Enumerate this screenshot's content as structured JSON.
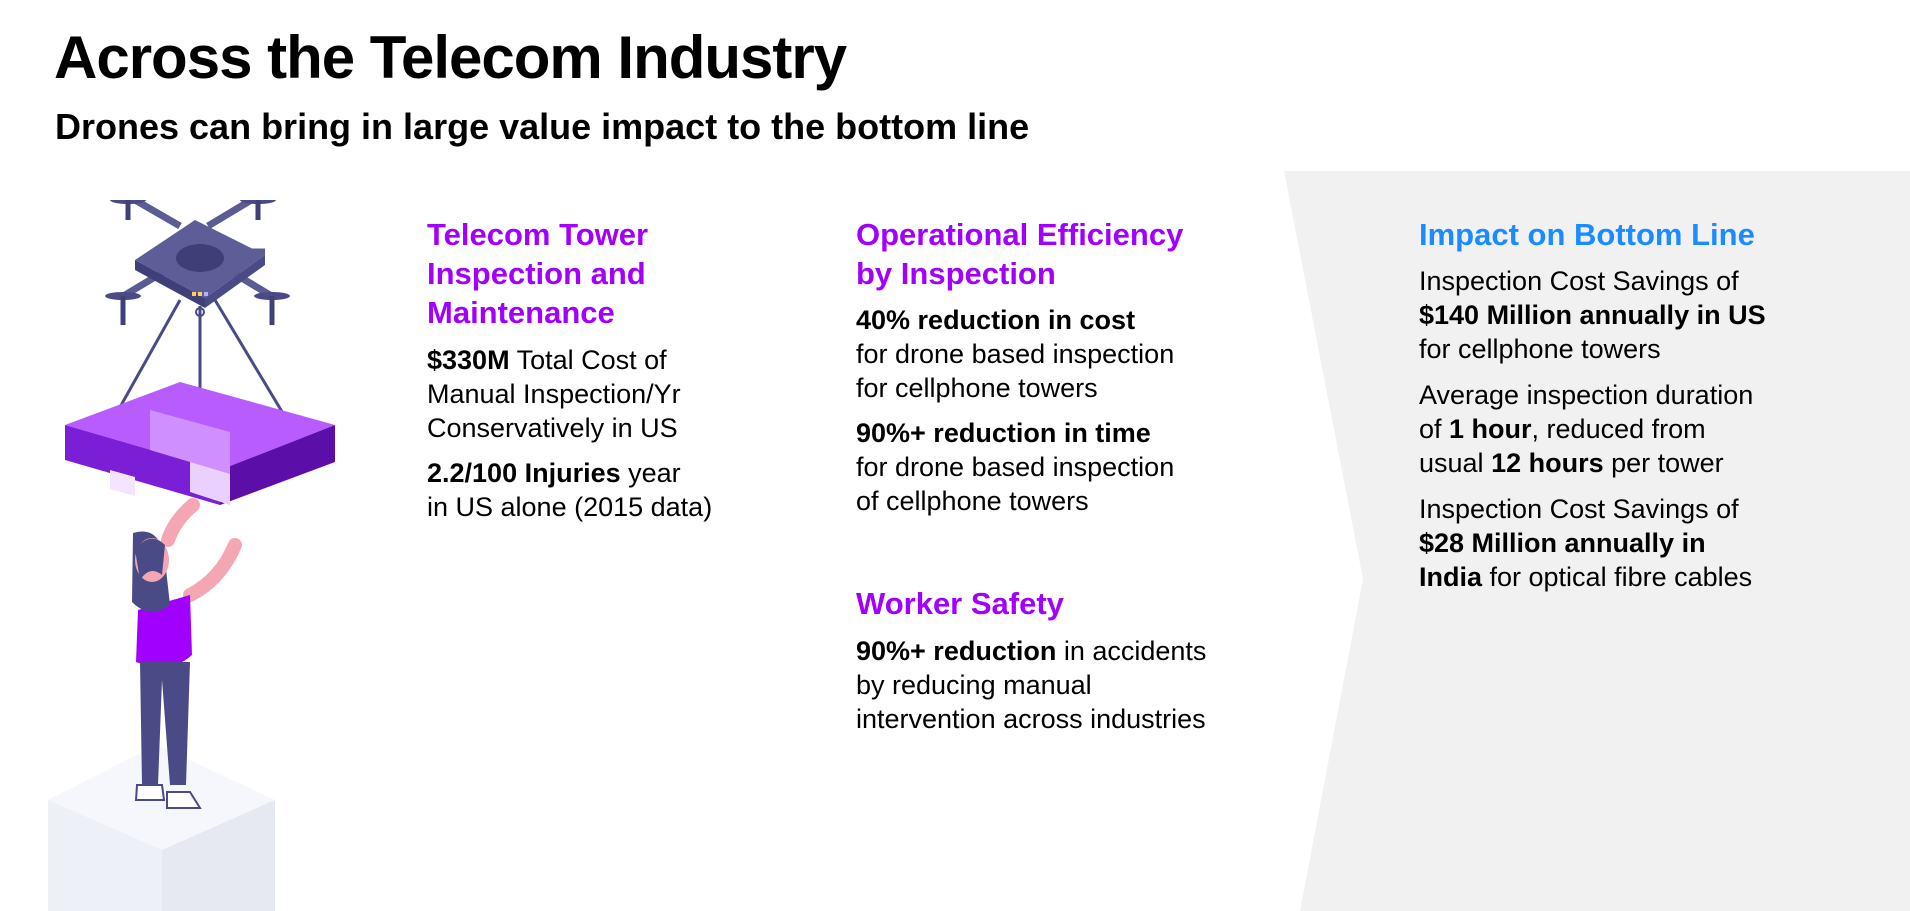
{
  "title": "Across the Telecom Industry",
  "subtitle": "Drones can bring in large value impact to the bottom line",
  "colors": {
    "accent_purple": "#a100ff",
    "accent_blue": "#1a8cff",
    "panel_gray": "#f1f1f1"
  },
  "illustration": {
    "icons": [
      "drone-icon",
      "package-icon",
      "person-icon",
      "pedestal-icon"
    ]
  },
  "col1": {
    "heading_l1": "Telecom Tower",
    "heading_l2": "Inspection and",
    "heading_l3": "Maintenance",
    "p1_bold": "$330M",
    "p1_l1": " Total Cost of",
    "p1_l2": "Manual Inspection/Yr",
    "p1_l3": "Conservatively in US",
    "p2_bold": "2.2/100 Injuries",
    "p2_l1": " year",
    "p2_l2": "in US alone (2015 data)"
  },
  "col2": {
    "heading_l1": "Operational Efficiency",
    "heading_l2": "by Inspection",
    "p1_bold": "40% reduction in cost",
    "p1_l2": "for drone based inspection",
    "p1_l3": "for cellphone towers",
    "p2_bold": "90%+ reduction in time",
    "p2_l2": "for drone based inspection",
    "p2_l3": "of cellphone towers"
  },
  "col3": {
    "heading": "Worker Safety",
    "p1_bold": "90%+ reduction",
    "p1_l1": " in accidents",
    "p1_l2": "by reducing manual",
    "p1_l3": "intervention across industries"
  },
  "col4": {
    "heading": "Impact on Bottom Line",
    "p1_l1": "Inspection Cost Savings of",
    "p1_bold": "$140 Million annually in US",
    "p1_l3": "for cellphone towers",
    "p2_l1": "Average inspection duration",
    "p2_l2_a": "of ",
    "p2_l2_bold": "1 hour",
    "p2_l2_b": ", reduced from",
    "p2_l3_a": "usual ",
    "p2_l3_bold": "12 hours",
    "p2_l3_b": " per tower",
    "p3_l1": "Inspection Cost Savings of",
    "p3_bold_l2": "$28 Million annually in",
    "p3_bold_l3": "India",
    "p3_l3": " for optical fibre cables"
  }
}
